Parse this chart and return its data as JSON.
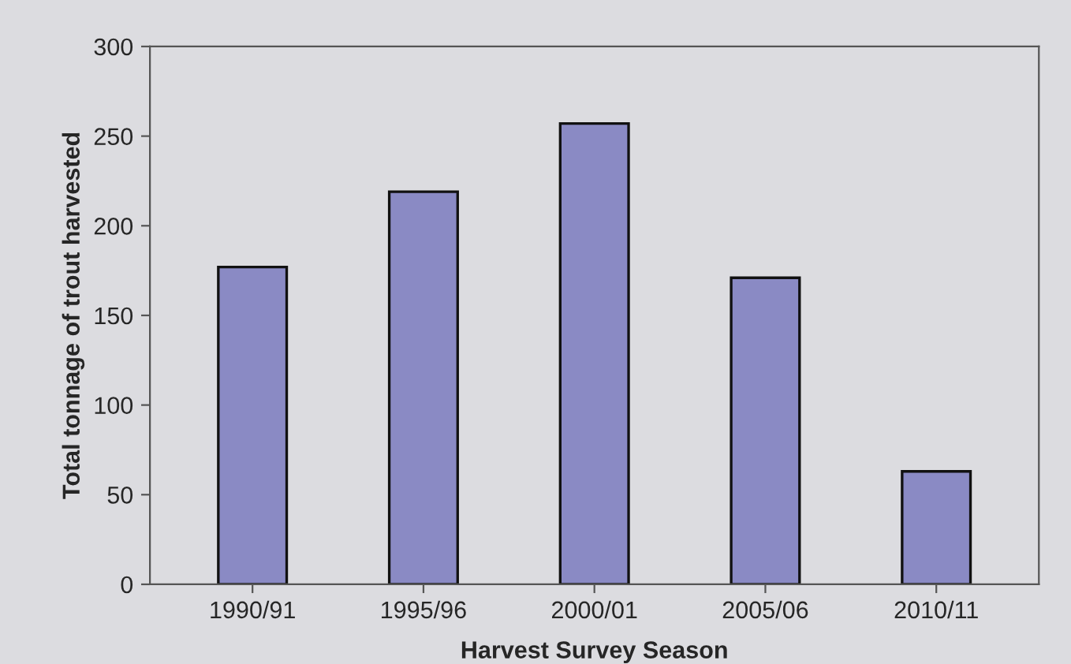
{
  "chart_data": {
    "type": "bar",
    "xlabel": "Harvest Survey Season",
    "ylabel": "Total tonnage of trout harvested",
    "categories": [
      "1990/91",
      "1995/96",
      "2000/01",
      "2005/06",
      "2010/11"
    ],
    "values": [
      177,
      219,
      257,
      171,
      63
    ],
    "color": "#8a8ac4",
    "ylim": [
      0,
      300
    ],
    "yticks": [
      0,
      50,
      100,
      150,
      200,
      250,
      300
    ],
    "grid": false,
    "legend": false
  }
}
